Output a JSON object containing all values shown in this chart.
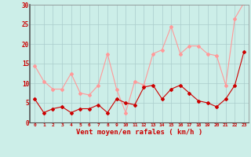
{
  "x": [
    0,
    1,
    2,
    3,
    4,
    5,
    6,
    7,
    8,
    9,
    10,
    11,
    12,
    13,
    14,
    15,
    16,
    17,
    18,
    19,
    20,
    21,
    22,
    23
  ],
  "wind_avg": [
    6,
    2.5,
    3.5,
    4,
    2.5,
    3.5,
    3.5,
    4.5,
    2.5,
    6,
    5,
    4.5,
    9,
    9.5,
    6,
    8.5,
    9.5,
    7.5,
    5.5,
    5,
    4,
    6,
    9.5,
    18
  ],
  "wind_gust": [
    14.5,
    10.5,
    8.5,
    8.5,
    12.5,
    7.5,
    7,
    9.5,
    17.5,
    8.5,
    2.5,
    10.5,
    9.5,
    17.5,
    18.5,
    24.5,
    17.5,
    19.5,
    19.5,
    17.5,
    17,
    9.5,
    26.5,
    30.5
  ],
  "xlabel": "Vent moyen/en rafales ( km/h )",
  "xlim": [
    -0.5,
    23.5
  ],
  "ylim": [
    0,
    30
  ],
  "yticks": [
    0,
    5,
    10,
    15,
    20,
    25,
    30
  ],
  "xticks": [
    0,
    1,
    2,
    3,
    4,
    5,
    6,
    7,
    8,
    9,
    10,
    11,
    12,
    13,
    14,
    15,
    16,
    17,
    18,
    19,
    20,
    21,
    22,
    23
  ],
  "bg_color": "#cceee8",
  "line_avg_color": "#cc0000",
  "line_gust_color": "#ff9999",
  "grid_color": "#aacccc",
  "text_color": "#cc0000"
}
